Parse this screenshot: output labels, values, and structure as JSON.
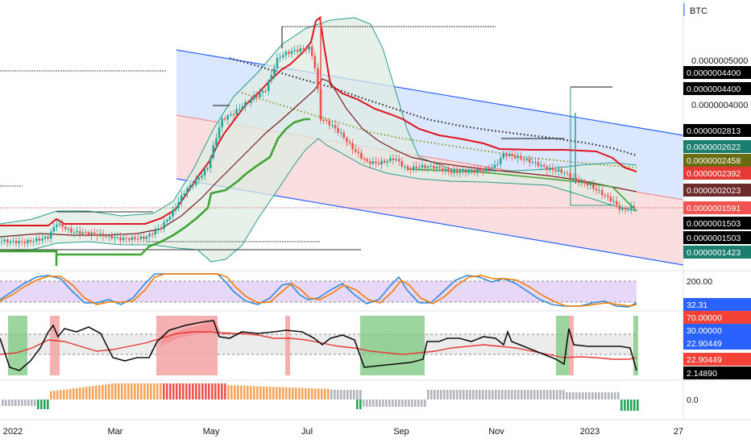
{
  "chart_data": {
    "type": "candlestick",
    "symbol_currency": "BTC",
    "x_axis": {
      "ticks": [
        "2022",
        "Mar",
        "May",
        "Jul",
        "Sep",
        "Nov",
        "2023",
        "27"
      ]
    },
    "price_axis": {
      "ticks": [
        "0.0000005000",
        "0.0000004000"
      ]
    },
    "price_labels": [
      {
        "text": "0.0000004400",
        "bg": "#000000",
        "fg": "#ffffff"
      },
      {
        "text": "0.0000004400",
        "bg": "#000000",
        "fg": "#ffffff"
      },
      {
        "text": "0.0000002813",
        "bg": "#000000",
        "fg": "#ffffff"
      },
      {
        "text": "0.0000002622",
        "bg": "#1b7f70",
        "fg": "#ffffff"
      },
      {
        "text": "0.0000002458",
        "bg": "#6b6b12",
        "fg": "#ffffff"
      },
      {
        "text": "0.0000002392",
        "bg": "#e53935",
        "fg": "#ffffff"
      },
      {
        "text": "0.0000002023",
        "bg": "#6d2a2a",
        "fg": "#ffffff"
      },
      {
        "text": "0.0000001591",
        "bg": "#f05350",
        "fg": "#ffffff"
      },
      {
        "text": "0.0000001503",
        "bg": "#000000",
        "fg": "#ffffff"
      },
      {
        "text": "0.0000001503",
        "bg": "#000000",
        "fg": "#ffffff"
      },
      {
        "text": "0.0000001423",
        "bg": "#1b7f70",
        "fg": "#ffffff"
      }
    ],
    "oscillator_1": {
      "labels": [
        {
          "text": "200.00",
          "bg": "",
          "fg": "#131722"
        },
        {
          "text": "32.31",
          "bg": "#2962ff",
          "fg": "#ffffff"
        }
      ]
    },
    "oscillator_2": {
      "labels": [
        {
          "text": "70.00000",
          "bg": "#f44336",
          "fg": "#ffffff"
        },
        {
          "text": "30.00000",
          "bg": "#2962ff",
          "fg": "#ffffff"
        },
        {
          "text": "22.90449",
          "bg": "#2962ff",
          "fg": "#ffffff"
        },
        {
          "text": "22.90449",
          "bg": "#f44336",
          "fg": "#ffffff"
        },
        {
          "text": "2.14890",
          "bg": "#000000",
          "fg": "#ffffff"
        }
      ]
    },
    "oscillator_3": {
      "labels": [
        {
          "text": "0.0",
          "bg": "",
          "fg": "#131722"
        }
      ]
    },
    "colors": {
      "up": "#26a69a",
      "down": "#ef5350",
      "channel_upper": "#2962ff",
      "upper_fill": "#dbe6ff",
      "lower_fill": "#fbdfe0",
      "bollinger": "#2a9d8f",
      "bollinger_fill": "#e4f3ec",
      "red_line": "#e0141e",
      "dark_red_line": "#7a1f1f",
      "green_line": "#3fa535",
      "dotted_black": "#2b2b2b",
      "dotted_olive": "#8a9a2a",
      "osc_blue": "#2f8bd8",
      "osc_orange": "#f57c00",
      "osc_band": "#e7d8f7",
      "rsi_black": "#111111",
      "rsi_red": "#e53935",
      "hist_orange": "#f5a55a",
      "hist_red": "#ef5350",
      "hist_gray": "#b2b5be",
      "hist_green": "#26a65b"
    }
  }
}
